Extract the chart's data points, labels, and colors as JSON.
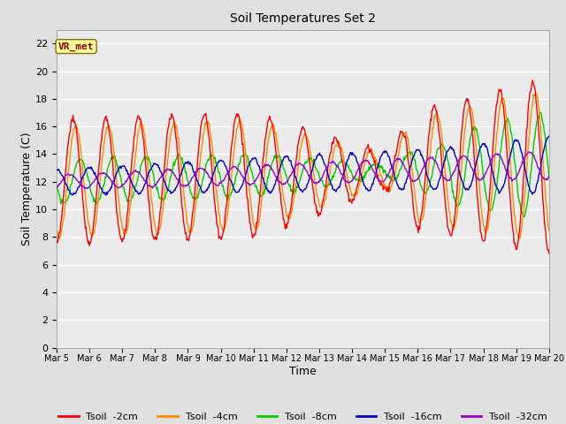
{
  "title": "Soil Temperatures Set 2",
  "xlabel": "Time",
  "ylabel": "Soil Temperature (C)",
  "ylim": [
    0,
    23
  ],
  "yticks": [
    0,
    2,
    4,
    6,
    8,
    10,
    12,
    14,
    16,
    18,
    20,
    22
  ],
  "annotation": "VR_met",
  "annotation_color": "#8B0000",
  "annotation_bg": "#FFFF99",
  "colors": {
    "tsoil_2cm": "#FF0000",
    "tsoil_4cm": "#FF8C00",
    "tsoil_8cm": "#00CC00",
    "tsoil_16cm": "#0000CC",
    "tsoil_32cm": "#9900CC"
  },
  "legend_labels": [
    "Tsoil  -2cm",
    "Tsoil  -4cm",
    "Tsoil  -8cm",
    "Tsoil  -16cm",
    "Tsoil  -32cm"
  ],
  "bg_color": "#E0E0E0",
  "plot_bg_color": "#EBEBEB",
  "grid_color": "#FFFFFF",
  "start_day": 5,
  "end_day": 20,
  "samples_per_day": 48
}
